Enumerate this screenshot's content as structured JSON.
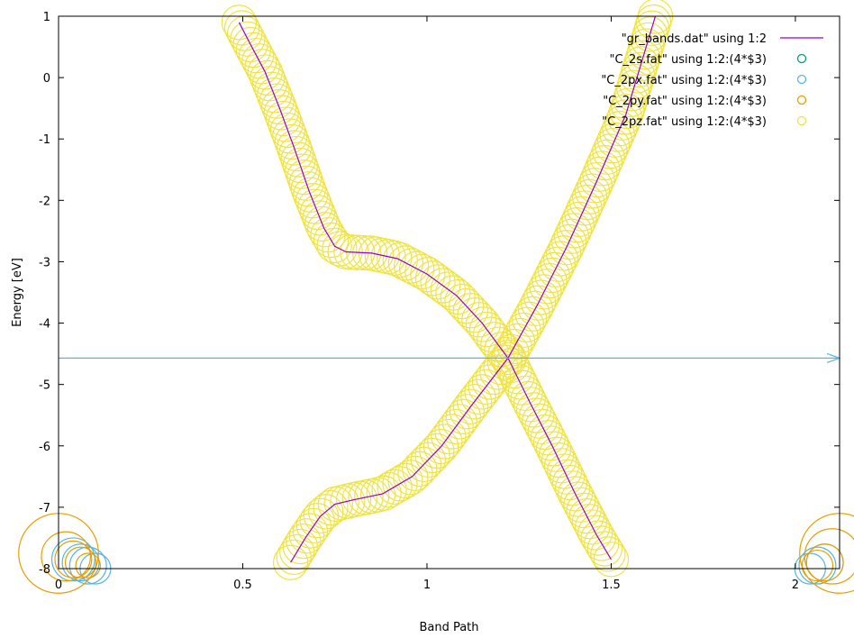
{
  "chart_data": {
    "type": "scatter",
    "title": "",
    "xlabel": "Band Path",
    "ylabel": "Energy [eV]",
    "xlim": [
      0,
      2.12
    ],
    "ylim": [
      -8,
      1
    ],
    "xticks": [
      0,
      0.5,
      1,
      1.5,
      2
    ],
    "xtick_labels": [
      "0",
      "0.5",
      "1",
      "1.5",
      "2"
    ],
    "yticks": [
      -8,
      -7,
      -6,
      -5,
      -4,
      -3,
      -2,
      -1,
      0,
      1
    ],
    "ytick_labels": [
      "-8",
      "-7",
      "-6",
      "-5",
      "-4",
      "-3",
      "-2",
      "-1",
      "0",
      "1"
    ],
    "grid": false,
    "legend_position": "top-right",
    "fermi_arrow": {
      "y": -4.57,
      "color": "#56b4e9"
    },
    "series": [
      {
        "name": "\"gr_bands.dat\" using 1:2",
        "style": "line",
        "color": "#9400d3",
        "segments": [
          [
            [
              0.49,
              0.9
            ],
            [
              0.52,
              0.55
            ],
            [
              0.56,
              0.1
            ],
            [
              0.6,
              -0.5
            ],
            [
              0.64,
              -1.15
            ],
            [
              0.68,
              -1.85
            ],
            [
              0.72,
              -2.45
            ],
            [
              0.75,
              -2.75
            ],
            [
              0.78,
              -2.84
            ],
            [
              0.85,
              -2.86
            ],
            [
              0.92,
              -2.95
            ],
            [
              1.0,
              -3.2
            ],
            [
              1.08,
              -3.55
            ],
            [
              1.15,
              -4.0
            ],
            [
              1.22,
              -4.57
            ],
            [
              1.28,
              -5.3
            ],
            [
              1.34,
              -6.0
            ],
            [
              1.4,
              -6.75
            ],
            [
              1.46,
              -7.45
            ],
            [
              1.5,
              -7.85
            ]
          ],
          [
            [
              0.63,
              -7.9
            ],
            [
              0.67,
              -7.5
            ],
            [
              0.71,
              -7.15
            ],
            [
              0.75,
              -6.95
            ],
            [
              0.8,
              -6.88
            ],
            [
              0.88,
              -6.78
            ],
            [
              0.96,
              -6.5
            ],
            [
              1.04,
              -6.0
            ],
            [
              1.12,
              -5.35
            ],
            [
              1.22,
              -4.57
            ],
            [
              1.3,
              -3.7
            ],
            [
              1.38,
              -2.75
            ],
            [
              1.46,
              -1.7
            ],
            [
              1.54,
              -0.6
            ],
            [
              1.62,
              1.0
            ]
          ]
        ]
      },
      {
        "name": "\"C_2s.fat\" using 1:2:(4*$3)",
        "style": "circles",
        "color": "#009e73",
        "points": []
      },
      {
        "name": "\"C_2px.fat\" using 1:2:(4*$3)",
        "style": "circles",
        "color": "#56b4e9",
        "points": [
          [
            0.04,
            -7.85,
            0.35
          ],
          [
            0.06,
            -7.9,
            0.3
          ],
          [
            0.08,
            -7.95,
            0.3
          ],
          [
            0.1,
            -8.0,
            0.25
          ],
          [
            2.04,
            -8.0,
            0.25
          ],
          [
            2.06,
            -7.95,
            0.3
          ],
          [
            2.08,
            -7.9,
            0.3
          ]
        ]
      },
      {
        "name": "\"C_2py.fat\" using 1:2:(4*$3)",
        "style": "circles",
        "color": "#e69f00",
        "points": [
          [
            0.0,
            -7.75,
            0.65
          ],
          [
            0.02,
            -7.8,
            0.4
          ],
          [
            0.04,
            -7.85,
            0.3
          ],
          [
            0.06,
            -7.9,
            0.25
          ],
          [
            0.08,
            -7.95,
            0.2
          ],
          [
            2.06,
            -7.95,
            0.25
          ],
          [
            2.08,
            -7.9,
            0.3
          ],
          [
            2.1,
            -7.8,
            0.45
          ],
          [
            2.12,
            -7.75,
            0.65
          ]
        ]
      },
      {
        "name": "\"C_2pz.fat\" using 1:2:(4*$3)",
        "style": "circles",
        "color": "#f0e442",
        "follows_line": true,
        "radius_data_units": 0.28
      }
    ]
  }
}
